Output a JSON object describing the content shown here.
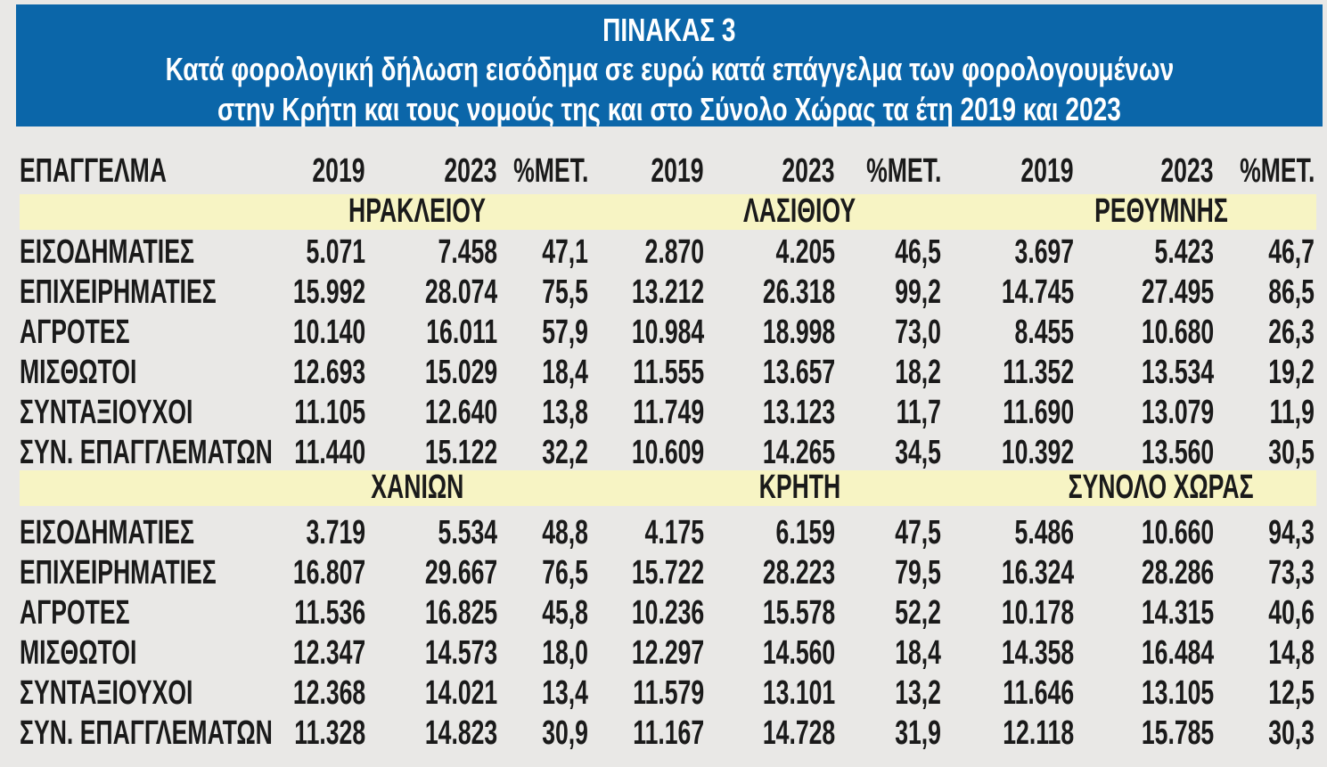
{
  "title": {
    "line1": "ΠΙΝΑΚΑΣ 3",
    "line2": "Κατά φορολογική δήλωση εισόδημα σε ευρώ κατά επάγγελμα των φορολογουμένων",
    "line3": "στην Κρήτη και τους νομούς της και στο Σύνολο Χώρας τα έτη 2019 και 2023"
  },
  "header": [
    "ΕΠΑΓΓΕΛΜΑ",
    "2019",
    "2023",
    "%ΜΕΤ.",
    "2019",
    "2023",
    "%ΜΕΤ.",
    "2019",
    "2023",
    "%ΜΕΤ."
  ],
  "sections": [
    {
      "regions": [
        "ΗΡΑΚΛΕΙΟΥ",
        "ΛΑΣΙΘΙΟΥ",
        "ΡΕΘΥΜΝΗΣ"
      ],
      "rows": [
        [
          "ΕΙΣΟΔΗΜΑΤΙΕΣ",
          "5.071",
          "7.458",
          "47,1",
          "2.870",
          "4.205",
          "46,5",
          "3.697",
          "5.423",
          "46,7"
        ],
        [
          "ΕΠΙΧΕΙΡΗΜΑΤΙΕΣ",
          "15.992",
          "28.074",
          "75,5",
          "13.212",
          "26.318",
          "99,2",
          "14.745",
          "27.495",
          "86,5"
        ],
        [
          "ΑΓΡΟΤΕΣ",
          "10.140",
          "16.011",
          "57,9",
          "10.984",
          "18.998",
          "73,0",
          "8.455",
          "10.680",
          "26,3"
        ],
        [
          "ΜΙΣΘΩΤΟΙ",
          "12.693",
          "15.029",
          "18,4",
          "11.555",
          "13.657",
          "18,2",
          "11.352",
          "13.534",
          "19,2"
        ],
        [
          "ΣΥΝΤΑΞΙΟΥΧΟΙ",
          "11.105",
          "12.640",
          "13,8",
          "11.749",
          "13.123",
          "11,7",
          "11.690",
          "13.079",
          "11,9"
        ],
        [
          "ΣΥΝ. ΕΠΑΓΓΛΕΜΑΤΩΝ",
          "11.440",
          "15.122",
          "32,2",
          "10.609",
          "14.265",
          "34,5",
          "10.392",
          "13.560",
          "30,5"
        ]
      ]
    },
    {
      "regions": [
        "ΧΑΝΙΩΝ",
        "ΚΡΗΤΗ",
        "ΣΥΝΟΛΟ ΧΩΡΑΣ"
      ],
      "rows": [
        [
          "ΕΙΣΟΔΗΜΑΤΙΕΣ",
          "3.719",
          "5.534",
          "48,8",
          "4.175",
          "6.159",
          "47,5",
          "5.486",
          "10.660",
          "94,3"
        ],
        [
          "ΕΠΙΧΕΙΡΗΜΑΤΙΕΣ",
          "16.807",
          "29.667",
          "76,5",
          "15.722",
          "28.223",
          "79,5",
          "16.324",
          "28.286",
          "73,3"
        ],
        [
          "ΑΓΡΟΤΕΣ",
          "11.536",
          "16.825",
          "45,8",
          "10.236",
          "15.578",
          "52,2",
          "10.178",
          "14.315",
          "40,6"
        ],
        [
          "ΜΙΣΘΩΤΟΙ",
          "12.347",
          "14.573",
          "18,0",
          "12.297",
          "14.560",
          "18,4",
          "14.358",
          "16.484",
          "14,8"
        ],
        [
          "ΣΥΝΤΑΞΙΟΥΧΟΙ",
          "12.368",
          "14.021",
          "13,4",
          "11.579",
          "13.101",
          "13,2",
          "11.646",
          "13.105",
          "12,5"
        ],
        [
          "ΣΥΝ. ΕΠΑΓΓΛΕΜΑΤΩΝ",
          "11.328",
          "14.823",
          "30,9",
          "11.167",
          "14.728",
          "31,9",
          "12.118",
          "15.785",
          "30,3"
        ]
      ]
    }
  ]
}
